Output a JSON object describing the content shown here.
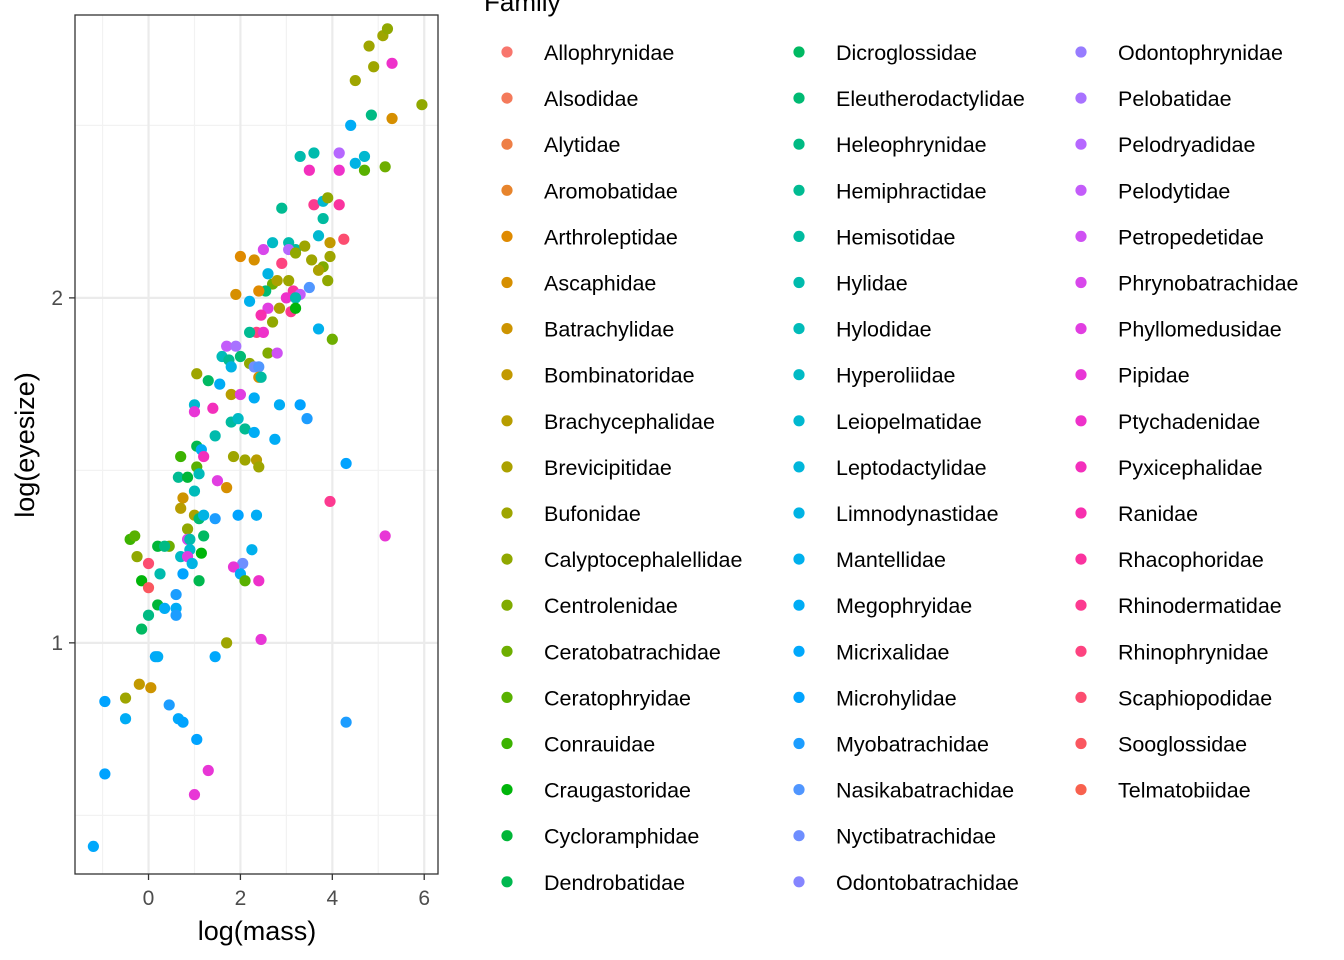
{
  "chart_data": {
    "type": "scatter",
    "xlabel": "log(mass)",
    "ylabel": "log(eyesize)",
    "xlim": [
      -1.6,
      6.3
    ],
    "ylim": [
      0.33,
      2.82
    ],
    "x_ticks": [
      0,
      2,
      4,
      6
    ],
    "y_ticks": [
      1,
      2
    ],
    "grid": true,
    "legend": {
      "title": "Family",
      "placement": "right",
      "columns": 3,
      "entries": [
        {
          "name": "Allophrynidae",
          "color": "#F8766D"
        },
        {
          "name": "Alsodidae",
          "color": "#F47A5B"
        },
        {
          "name": "Alytidae",
          "color": "#EE7F46"
        },
        {
          "name": "Aromobatidae",
          "color": "#E7842C"
        },
        {
          "name": "Arthroleptidae",
          "color": "#DF8A00"
        },
        {
          "name": "Ascaphidae",
          "color": "#D68F00"
        },
        {
          "name": "Batrachylidae",
          "color": "#CD9400"
        },
        {
          "name": "Bombinatoridae",
          "color": "#C29900"
        },
        {
          "name": "Brachycephalidae",
          "color": "#B79D00"
        },
        {
          "name": "Brevicipitidae",
          "color": "#ABA100"
        },
        {
          "name": "Bufonidae",
          "color": "#9EA500"
        },
        {
          "name": "Calyptocephalellidae",
          "color": "#90A800"
        },
        {
          "name": "Centrolenidae",
          "color": "#80AB00"
        },
        {
          "name": "Ceratobatrachidae",
          "color": "#6EAE00"
        },
        {
          "name": "Ceratophryidae",
          "color": "#59B100"
        },
        {
          "name": "Conrauidae",
          "color": "#3CB300"
        },
        {
          "name": "Craugastoridae",
          "color": "#00B50A"
        },
        {
          "name": "Cycloramphidae",
          "color": "#00B637"
        },
        {
          "name": "Dendrobatidae",
          "color": "#00B84F"
        },
        {
          "name": "Dicroglossidae",
          "color": "#00B962"
        },
        {
          "name": "Eleutherodactylidae",
          "color": "#00BA73"
        },
        {
          "name": "Heleophrynidae",
          "color": "#00BA83"
        },
        {
          "name": "Hemiphractidae",
          "color": "#00BB92"
        },
        {
          "name": "Hemisotidae",
          "color": "#00BBA0"
        },
        {
          "name": "Hylidae",
          "color": "#00BBAD"
        },
        {
          "name": "Hylodidae",
          "color": "#00BBB9"
        },
        {
          "name": "Hyperoliidae",
          "color": "#00BAC5"
        },
        {
          "name": "Leiopelmatidae",
          "color": "#00B8D0"
        },
        {
          "name": "Leptodactylidae",
          "color": "#00B6DB"
        },
        {
          "name": "Limnodynastidae",
          "color": "#00B3E4"
        },
        {
          "name": "Mantellidae",
          "color": "#00B0ED"
        },
        {
          "name": "Megophryidae",
          "color": "#00ACF5"
        },
        {
          "name": "Micrixalidae",
          "color": "#00A8FC"
        },
        {
          "name": "Microhylidae",
          "color": "#00A3FF"
        },
        {
          "name": "Myobatrachidae",
          "color": "#1C9DFF"
        },
        {
          "name": "Nasikabatrachidae",
          "color": "#5096FF"
        },
        {
          "name": "Nyctibatrachidae",
          "color": "#6E8EFF"
        },
        {
          "name": "Odontobatrachidae",
          "color": "#8585FF"
        },
        {
          "name": "Odontophrynidae",
          "color": "#977CFF"
        },
        {
          "name": "Pelobatidae",
          "color": "#A872FF"
        },
        {
          "name": "Pelodryadidae",
          "color": "#B667FF"
        },
        {
          "name": "Pelodytidae",
          "color": "#C35CFA"
        },
        {
          "name": "Petropedetidae",
          "color": "#CF51F3"
        },
        {
          "name": "Phrynobatrachidae",
          "color": "#D847EB"
        },
        {
          "name": "Phyllomedusidae",
          "color": "#E13EE1"
        },
        {
          "name": "Pipidae",
          "color": "#E836D6"
        },
        {
          "name": "Ptychadenidae",
          "color": "#EE31CA"
        },
        {
          "name": "Pyxicephalidae",
          "color": "#F32FBC"
        },
        {
          "name": "Ranidae",
          "color": "#F72FAE"
        },
        {
          "name": "Rhacophoridae",
          "color": "#FA339F"
        },
        {
          "name": "Rhinodermatidae",
          "color": "#FC3A90"
        },
        {
          "name": "Rhinophrynidae",
          "color": "#FD4380"
        },
        {
          "name": "Scaphiopodidae",
          "color": "#FC4D70"
        },
        {
          "name": "Sooglossidae",
          "color": "#FA575F"
        },
        {
          "name": "Telmatobiidae",
          "color": "#F8614E"
        }
      ]
    },
    "points": [
      [
        4.8,
        2.73,
        10
      ],
      [
        5.1,
        2.76,
        10
      ],
      [
        5.2,
        2.78,
        11
      ],
      [
        4.9,
        2.67,
        10
      ],
      [
        4.5,
        2.63,
        10
      ],
      [
        5.3,
        2.52,
        5
      ],
      [
        5.95,
        2.56,
        11
      ],
      [
        5.3,
        2.68,
        46
      ],
      [
        4.4,
        2.5,
        31
      ],
      [
        4.7,
        2.41,
        27
      ],
      [
        4.5,
        2.39,
        29
      ],
      [
        4.85,
        2.53,
        21
      ],
      [
        4.7,
        2.37,
        14
      ],
      [
        5.15,
        2.38,
        13
      ],
      [
        4.15,
        2.42,
        40
      ],
      [
        4.15,
        2.37,
        46
      ],
      [
        3.3,
        2.41,
        24
      ],
      [
        3.6,
        2.42,
        24
      ],
      [
        3.5,
        2.37,
        47
      ],
      [
        3.6,
        2.27,
        50
      ],
      [
        3.8,
        2.28,
        27
      ],
      [
        3.9,
        2.29,
        11
      ],
      [
        3.8,
        2.23,
        23
      ],
      [
        4.15,
        2.27,
        49
      ],
      [
        2.9,
        2.26,
        22
      ],
      [
        3.05,
        2.16,
        24
      ],
      [
        3.2,
        2.14,
        23
      ],
      [
        3.7,
        2.18,
        27
      ],
      [
        4.25,
        2.17,
        52
      ],
      [
        3.95,
        2.16,
        7
      ],
      [
        3.4,
        2.15,
        10
      ],
      [
        3.05,
        2.14,
        40
      ],
      [
        2.7,
        2.16,
        26
      ],
      [
        2.5,
        2.14,
        43
      ],
      [
        2.9,
        2.1,
        51
      ],
      [
        3.2,
        2.13,
        11
      ],
      [
        3.55,
        2.11,
        10
      ],
      [
        3.8,
        2.09,
        12
      ],
      [
        3.7,
        2.08,
        9
      ],
      [
        3.95,
        2.12,
        10
      ],
      [
        2.0,
        2.12,
        4
      ],
      [
        2.3,
        2.11,
        5
      ],
      [
        2.6,
        2.07,
        29
      ],
      [
        2.7,
        2.04,
        13
      ],
      [
        2.55,
        2.02,
        20
      ],
      [
        2.4,
        2.02,
        4
      ],
      [
        2.8,
        2.05,
        9
      ],
      [
        3.05,
        2.05,
        10
      ],
      [
        3.15,
        2.02,
        49
      ],
      [
        3.0,
        2.0,
        46
      ],
      [
        3.3,
        2.01,
        41
      ],
      [
        3.5,
        2.03,
        35
      ],
      [
        3.2,
        2.0,
        24
      ],
      [
        3.9,
        2.05,
        11
      ],
      [
        1.9,
        2.01,
        5
      ],
      [
        2.2,
        1.99,
        30
      ],
      [
        2.6,
        1.97,
        44
      ],
      [
        2.85,
        1.97,
        9
      ],
      [
        3.1,
        1.96,
        50
      ],
      [
        3.2,
        1.97,
        16
      ],
      [
        2.45,
        1.95,
        48
      ],
      [
        2.7,
        1.93,
        11
      ],
      [
        2.35,
        1.9,
        51
      ],
      [
        2.5,
        1.9,
        46
      ],
      [
        2.2,
        1.9,
        22
      ],
      [
        2.6,
        1.84,
        12
      ],
      [
        2.8,
        1.84,
        42
      ],
      [
        4.0,
        1.88,
        13
      ],
      [
        3.7,
        1.91,
        30
      ],
      [
        1.7,
        1.86,
        41
      ],
      [
        1.9,
        1.86,
        39
      ],
      [
        2.0,
        1.83,
        20
      ],
      [
        1.6,
        1.83,
        25
      ],
      [
        1.75,
        1.82,
        22
      ],
      [
        1.8,
        1.8,
        29
      ],
      [
        2.2,
        1.81,
        11
      ],
      [
        2.3,
        1.8,
        36
      ],
      [
        2.4,
        1.8,
        35
      ],
      [
        1.05,
        1.78,
        10
      ],
      [
        1.3,
        1.76,
        19
      ],
      [
        1.55,
        1.75,
        31
      ],
      [
        1.8,
        1.72,
        8
      ],
      [
        2.0,
        1.72,
        44
      ],
      [
        2.3,
        1.71,
        31
      ],
      [
        2.4,
        1.77,
        5
      ],
      [
        2.45,
        1.77,
        23
      ],
      [
        2.85,
        1.69,
        31
      ],
      [
        3.3,
        1.69,
        33
      ],
      [
        3.45,
        1.65,
        34
      ],
      [
        1.0,
        1.69,
        27
      ],
      [
        1.0,
        1.67,
        45
      ],
      [
        1.4,
        1.68,
        47
      ],
      [
        1.8,
        1.64,
        23
      ],
      [
        1.95,
        1.65,
        26
      ],
      [
        2.1,
        1.62,
        22
      ],
      [
        2.3,
        1.61,
        31
      ],
      [
        1.45,
        1.6,
        24
      ],
      [
        2.75,
        1.59,
        31
      ],
      [
        0.7,
        1.54,
        15
      ],
      [
        1.05,
        1.57,
        18
      ],
      [
        1.15,
        1.56,
        31
      ],
      [
        1.2,
        1.54,
        47
      ],
      [
        1.85,
        1.54,
        10
      ],
      [
        2.1,
        1.53,
        10
      ],
      [
        2.35,
        1.53,
        8
      ],
      [
        2.4,
        1.51,
        10
      ],
      [
        0.65,
        1.48,
        22
      ],
      [
        0.85,
        1.48,
        17
      ],
      [
        1.05,
        1.51,
        14
      ],
      [
        1.1,
        1.49,
        25
      ],
      [
        1.5,
        1.47,
        44
      ],
      [
        1.7,
        1.45,
        5
      ],
      [
        4.3,
        1.52,
        33
      ],
      [
        1.0,
        1.44,
        25
      ],
      [
        3.95,
        1.41,
        50
      ],
      [
        0.75,
        1.42,
        6
      ],
      [
        0.7,
        1.39,
        8
      ],
      [
        1.0,
        1.37,
        9
      ],
      [
        1.1,
        1.36,
        20
      ],
      [
        1.2,
        1.37,
        29
      ],
      [
        1.45,
        1.36,
        34
      ],
      [
        1.95,
        1.37,
        33
      ],
      [
        2.35,
        1.37,
        31
      ],
      [
        0.85,
        1.33,
        11
      ],
      [
        0.85,
        1.3,
        43
      ],
      [
        0.9,
        1.3,
        24
      ],
      [
        1.2,
        1.31,
        19
      ],
      [
        -0.4,
        1.3,
        15
      ],
      [
        -0.3,
        1.31,
        14
      ],
      [
        0.45,
        1.28,
        13
      ],
      [
        0.2,
        1.28,
        17
      ],
      [
        0.35,
        1.28,
        21
      ],
      [
        0.9,
        1.27,
        27
      ],
      [
        1.15,
        1.26,
        16
      ],
      [
        2.25,
        1.27,
        30
      ],
      [
        5.15,
        1.31,
        45
      ],
      [
        -0.25,
        1.25,
        11
      ],
      [
        0.7,
        1.25,
        26
      ],
      [
        0.85,
        1.25,
        44
      ],
      [
        0.0,
        1.23,
        52
      ],
      [
        0.95,
        1.23,
        29
      ],
      [
        2.05,
        1.23,
        36
      ],
      [
        0.25,
        1.2,
        24
      ],
      [
        0.75,
        1.2,
        33
      ],
      [
        1.85,
        1.22,
        45
      ],
      [
        2.0,
        1.2,
        31
      ],
      [
        -0.15,
        1.18,
        16
      ],
      [
        1.1,
        1.18,
        18
      ],
      [
        2.1,
        1.18,
        14
      ],
      [
        2.4,
        1.18,
        46
      ],
      [
        0.0,
        1.16,
        53
      ],
      [
        0.6,
        1.14,
        34
      ],
      [
        0.2,
        1.11,
        17
      ],
      [
        0.6,
        1.1,
        31
      ],
      [
        0.35,
        1.1,
        31
      ],
      [
        0.6,
        1.08,
        34
      ],
      [
        0.0,
        1.08,
        21
      ],
      [
        -0.15,
        1.04,
        19
      ],
      [
        0.15,
        0.96,
        32
      ],
      [
        0.2,
        0.96,
        31
      ],
      [
        1.45,
        0.96,
        32
      ],
      [
        1.7,
        1.0,
        10
      ],
      [
        2.45,
        1.01,
        45
      ],
      [
        -0.2,
        0.88,
        7
      ],
      [
        0.05,
        0.87,
        6
      ],
      [
        -0.5,
        0.84,
        10
      ],
      [
        -0.95,
        0.83,
        33
      ],
      [
        0.45,
        0.82,
        34
      ],
      [
        -0.5,
        0.78,
        31
      ],
      [
        0.65,
        0.78,
        32
      ],
      [
        0.75,
        0.77,
        33
      ],
      [
        4.3,
        0.77,
        34
      ],
      [
        1.05,
        0.72,
        33
      ],
      [
        1.3,
        0.63,
        45
      ],
      [
        -0.95,
        0.62,
        33
      ],
      [
        1.0,
        0.56,
        45
      ],
      [
        -1.2,
        0.41,
        32
      ]
    ]
  }
}
